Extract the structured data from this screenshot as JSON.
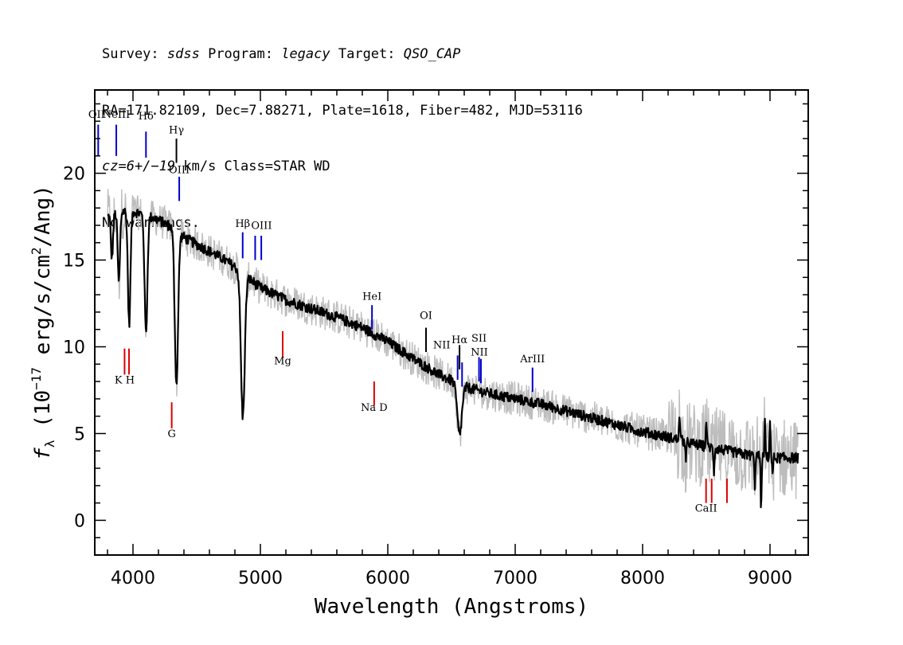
{
  "header": {
    "line1": {
      "survey_label": "Survey: ",
      "survey_value": "sdss",
      "program_label": " Program: ",
      "program_value": "legacy",
      "target_label": " Target: ",
      "target_value": "QSO_CAP"
    },
    "line2": "RA=171.82109, Dec=7.88271, Plate=1618, Fiber=482, MJD=53116",
    "line3": {
      "cz_value": "cz=6+/−19",
      "cz_rest": " km/s Class=STAR WD"
    },
    "line4": "No warnings."
  },
  "chart_data": {
    "type": "line",
    "xlabel": "Wavelength (Angstroms)",
    "ylabel": "fλ (10^-17 erg/s/cm^2/Ang)",
    "ylabel_parts": {
      "f": "f",
      "lambda": "λ",
      "open": " (10",
      "exp1": "−17",
      "mid": " erg/s/cm",
      "exp2": "2",
      "close": "/Ang)"
    },
    "xlim": [
      3700,
      9300
    ],
    "ylim": [
      -2,
      24.8
    ],
    "x_ticks": [
      4000,
      5000,
      6000,
      7000,
      8000,
      9000
    ],
    "y_ticks": [
      0,
      5,
      10,
      15,
      20
    ],
    "colors": {
      "model": "#000000",
      "noisy": "#bdbdbd",
      "emission": "#0000cc",
      "absorption": "#dd0000",
      "neutral": "#000000"
    },
    "continuum": [
      [
        3800,
        17.5
      ],
      [
        3900,
        17.8
      ],
      [
        4000,
        17.8
      ],
      [
        4100,
        17.6
      ],
      [
        4200,
        17.3
      ],
      [
        4300,
        16.9
      ],
      [
        4400,
        16.3
      ],
      [
        4500,
        15.9
      ],
      [
        4600,
        15.5
      ],
      [
        4700,
        15.1
      ],
      [
        4800,
        14.6
      ],
      [
        4900,
        14.0
      ],
      [
        5000,
        13.4
      ],
      [
        5200,
        12.7
      ],
      [
        5400,
        12.2
      ],
      [
        5600,
        11.7
      ],
      [
        5800,
        11.1
      ],
      [
        6000,
        10.3
      ],
      [
        6200,
        9.3
      ],
      [
        6400,
        8.4
      ],
      [
        6600,
        7.7
      ],
      [
        6800,
        7.3
      ],
      [
        7000,
        7.0
      ],
      [
        7200,
        6.7
      ],
      [
        7400,
        6.3
      ],
      [
        7600,
        5.9
      ],
      [
        7800,
        5.5
      ],
      [
        8000,
        5.1
      ],
      [
        8200,
        4.8
      ],
      [
        8400,
        4.4
      ],
      [
        8600,
        4.1
      ],
      [
        8800,
        3.8
      ],
      [
        9000,
        3.6
      ],
      [
        9220,
        3.6
      ]
    ],
    "absorption_features": [
      {
        "center": 3835,
        "depth": 2.5,
        "width": 8
      },
      {
        "center": 3889,
        "depth": 4.0,
        "width": 9
      },
      {
        "center": 3970,
        "depth": 6.5,
        "width": 10
      },
      {
        "center": 4102,
        "depth": 6.8,
        "width": 11
      },
      {
        "center": 4341,
        "depth": 8.8,
        "width": 13
      },
      {
        "center": 4862,
        "depth": 8.3,
        "width": 15
      },
      {
        "center": 6563,
        "depth": 2.9,
        "width": 18
      }
    ],
    "spike_features": [
      {
        "center": 8290,
        "delta": 1.5
      },
      {
        "center": 8340,
        "delta": -1.2
      },
      {
        "center": 8500,
        "delta": 1.6
      },
      {
        "center": 8560,
        "delta": -1.4
      },
      {
        "center": 8880,
        "delta": -1.7
      },
      {
        "center": 8930,
        "delta": -3.0
      },
      {
        "center": 8960,
        "delta": 2.0
      },
      {
        "center": 9000,
        "delta": 2.2
      },
      {
        "center": 9020,
        "delta": -1.0
      }
    ],
    "emission_lines": [
      {
        "label": "OII",
        "wave": 3727,
        "label_y": 23.2,
        "tick_top": 22.8,
        "tick_bottom": 21.0,
        "label_dx": -2
      },
      {
        "label": "NeIII",
        "wave": 3869,
        "label_y": 23.2,
        "tick_top": 22.8,
        "tick_bottom": 21.0
      },
      {
        "label": "Hδ",
        "wave": 4102,
        "label_y": 23.1,
        "tick_top": 22.4,
        "tick_bottom": 20.9
      },
      {
        "label": "Hγ",
        "wave": 4341,
        "label_y": 22.3,
        "tick_top": 22.0,
        "tick_bottom": 20.6,
        "neutral": true
      },
      {
        "label": "OIII",
        "wave": 4363,
        "label_y": 20.0,
        "tick_top": 19.8,
        "tick_bottom": 18.4
      },
      {
        "label": "Hβ",
        "wave": 4861,
        "label_y": 16.9,
        "tick_top": 16.6,
        "tick_bottom": 15.1
      },
      {
        "label": "OIII",
        "wave": 4959,
        "label_y": 16.8,
        "tick_top": 16.4,
        "tick_bottom": 15.0,
        "label_dx": 8
      },
      {
        "label": "OIII",
        "wave": 5007,
        "label_y": 16.8,
        "tick_top": 16.4,
        "tick_bottom": 15.0,
        "hide_label": true
      },
      {
        "label": "HeI",
        "wave": 5876,
        "label_y": 12.7,
        "tick_top": 12.4,
        "tick_bottom": 11.0
      },
      {
        "label": "OI",
        "wave": 6300,
        "label_y": 11.6,
        "tick_top": 11.1,
        "tick_bottom": 9.7,
        "neutral": true
      },
      {
        "label": "NII",
        "wave": 6548,
        "label_y": 9.9,
        "tick_top": 9.5,
        "tick_bottom": 8.1,
        "label_dx": -20
      },
      {
        "label": "Hα",
        "wave": 6563,
        "label_y": 10.2,
        "tick_top": 10.1,
        "tick_bottom": 8.7,
        "neutral": true
      },
      {
        "label": "NII",
        "wave": 6583,
        "label_y": 9.2,
        "tick_top": 9.1,
        "tick_bottom": 7.7,
        "hide_label": true
      },
      {
        "label": "SII",
        "wave": 6716,
        "label_y": 10.3,
        "tick_top": 9.4,
        "tick_bottom": 8.0
      },
      {
        "label": "NII",
        "wave": 6731,
        "label_y": 9.5,
        "tick_top": 9.3,
        "tick_bottom": 7.9,
        "label_dx": -2
      },
      {
        "label": "ArIII",
        "wave": 7136,
        "label_y": 9.1,
        "tick_top": 8.8,
        "tick_bottom": 7.4
      }
    ],
    "absorption_lines": [
      {
        "label": "K H",
        "wave": 3934,
        "wave2": 3969,
        "label_y": 7.9,
        "tick_top": 9.9,
        "tick_bottom": 8.4
      },
      {
        "label": "G",
        "wave": 4304,
        "label_y": 4.8,
        "tick_top": 6.8,
        "tick_bottom": 5.3
      },
      {
        "label": "Mg",
        "wave": 5175,
        "label_y": 9.0,
        "tick_top": 10.9,
        "tick_bottom": 9.4
      },
      {
        "label": "Na D",
        "wave": 5893,
        "label_y": 6.3,
        "tick_top": 8.0,
        "tick_bottom": 6.6
      },
      {
        "label": "CaII",
        "wave": 8498,
        "wave2": 8542,
        "wave3": 8662,
        "label_y": 0.5,
        "tick_top": 2.4,
        "tick_bottom": 1.0
      }
    ]
  }
}
